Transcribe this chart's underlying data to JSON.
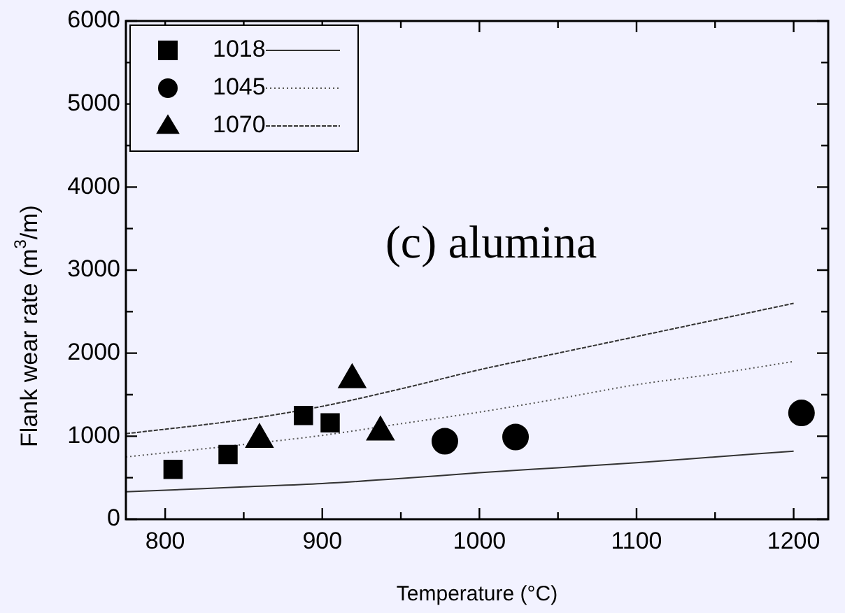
{
  "chart_data": {
    "type": "scatter",
    "xlabel": "Temperature (°C)",
    "ylabel": "Flank wear rate (m$^{3}$/m)",
    "annotations": [
      "(c) alumina"
    ],
    "xlim": [
      775,
      1222
    ],
    "ylim": [
      0,
      6000
    ],
    "xticks": [
      800,
      {
        "value": 850,
        "label": null
      },
      900,
      {
        "value": 950,
        "label": null
      },
      1000,
      {
        "value": 1050,
        "label": null
      },
      1100,
      {
        "value": 1150,
        "label": null
      },
      1200
    ],
    "yticks": [
      0,
      {
        "value": 500,
        "label": null
      },
      1000,
      {
        "value": 1500,
        "label": null
      },
      2000,
      {
        "value": 2500,
        "label": null
      },
      3000,
      {
        "value": 3500,
        "label": null
      },
      4000,
      {
        "value": 4500,
        "label": null
      },
      5000,
      {
        "value": 5500,
        "label": null
      },
      6000
    ],
    "grid": false,
    "legend": "top left",
    "series": [
      {
        "name": "1018",
        "marker": "square",
        "color": "#000000",
        "x": [
          805,
          840,
          888,
          905
        ],
        "values": [
          600,
          780,
          1250,
          1160
        ]
      },
      {
        "name": "1045",
        "marker": "circle",
        "color": "#000000",
        "x": [
          978,
          1023,
          1205
        ],
        "values": [
          940,
          990,
          1280
        ]
      },
      {
        "name": "1070",
        "marker": "triangle",
        "color": "#000000",
        "x": [
          860,
          919,
          937
        ],
        "values": [
          960,
          1680,
          1050
        ]
      },
      {
        "type": "line",
        "line_style": "solid",
        "color": "#333333",
        "x": [
          775,
          850,
          900,
          950,
          1000,
          1050,
          1100,
          1150,
          1200
        ],
        "values": [
          330,
          390,
          430,
          490,
          560,
          620,
          680,
          750,
          820
        ]
      },
      {
        "type": "line",
        "line_style": "dotted",
        "color": "#555555",
        "x": [
          775,
          850,
          900,
          950,
          1000,
          1050,
          1100,
          1150,
          1200
        ],
        "values": [
          750,
          900,
          1010,
          1150,
          1290,
          1450,
          1620,
          1750,
          1900
        ]
      },
      {
        "type": "line",
        "line_style": "dashed",
        "color": "#333333",
        "x": [
          775,
          850,
          900,
          950,
          1000,
          1050,
          1100,
          1150,
          1200
        ],
        "values": [
          1030,
          1200,
          1360,
          1570,
          1800,
          2000,
          2200,
          2400,
          2600
        ]
      }
    ]
  }
}
